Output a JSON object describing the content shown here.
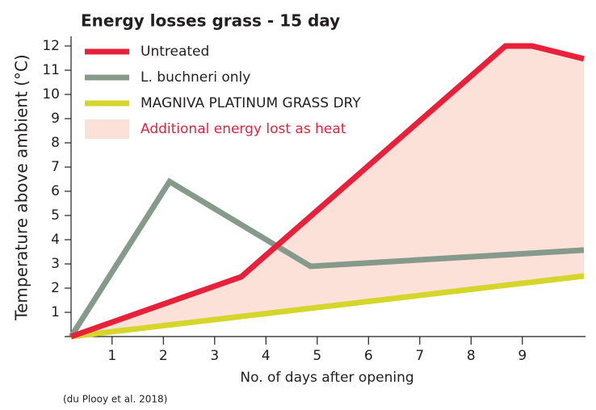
{
  "chart_data": {
    "type": "line",
    "title": "Energy losses grass - 15 day",
    "x_label": "No. of days after opening",
    "y_label": "Temperature above ambient (°C)",
    "source": "(du Plooy et al. 2018)",
    "xlim": [
      0.2,
      10.2
    ],
    "xticks": [
      1,
      2,
      3,
      4,
      5,
      6,
      7,
      8,
      9
    ],
    "ylim": [
      0,
      12.4
    ],
    "yticks": [
      1,
      2,
      3,
      4,
      5,
      6,
      7,
      8,
      9,
      10,
      11,
      12
    ],
    "series": [
      {
        "name": "Untreated",
        "color": "#e8213a",
        "x": [
          0.2,
          3.52,
          8.67,
          9.19,
          10.2
        ],
        "values": [
          0,
          2.47,
          12,
          12,
          11.47
        ]
      },
      {
        "name": "L. buchneri only",
        "color": "#859a8a",
        "x": [
          0.2,
          2.12,
          4.87,
          10.2
        ],
        "values": [
          0,
          6.4,
          2.9,
          3.57
        ]
      },
      {
        "name": "MAGNIVA PLATINUM GRASS DRY",
        "color": "#d4d62b",
        "x": [
          0.2,
          10.2
        ],
        "values": [
          0,
          2.5
        ]
      }
    ],
    "fill_between": {
      "name": "Additional energy lost as heat",
      "color": "#fce1d9",
      "text_color": "#e8213a",
      "series": [
        0,
        2
      ]
    }
  }
}
